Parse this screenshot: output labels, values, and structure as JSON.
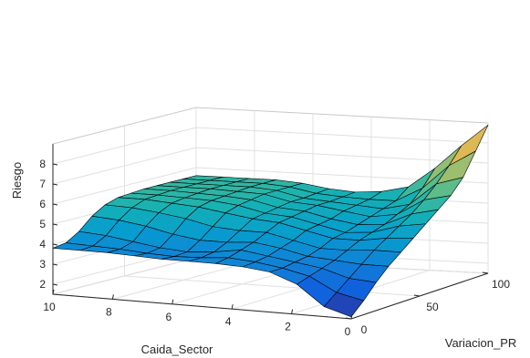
{
  "chart_data": {
    "type": "surface",
    "title": "",
    "xlabel": "Caida_Sector",
    "ylabel": "Variacion_PR",
    "zlabel": "Riesgo",
    "x_ticks": [
      "10",
      "8",
      "6",
      "4",
      "2",
      "0"
    ],
    "y_ticks": [
      "0",
      "50",
      "100"
    ],
    "z_ticks": [
      "2",
      "3",
      "4",
      "5",
      "6",
      "7",
      "8"
    ],
    "xlim": [
      0,
      10
    ],
    "ylim": [
      0,
      100
    ],
    "zlim": [
      1.5,
      9
    ],
    "grid": true,
    "colormap": "parula",
    "x_grid_values": [
      10,
      9.09,
      8.18,
      7.27,
      6.36,
      5.45,
      4.55,
      3.64,
      2.73,
      1.82,
      0.91,
      0
    ],
    "y_grid_values": [
      0,
      9.1,
      18.2,
      27.3,
      36.4,
      45.5,
      54.5,
      63.6,
      72.7,
      81.8,
      90.9,
      100
    ],
    "z_values_description": "Riesgo over grid; plateau ~3.8–5.7, min ~1.6 at Caida_Sector=0, Variacion_PR=0, max ~8.9 at Caida_Sector=0, Variacion_PR=100",
    "z_values": [
      [
        3.8,
        3.9,
        4.3,
        4.9,
        5.3,
        5.5,
        5.55,
        5.6,
        5.6,
        5.6,
        5.6,
        5.6
      ],
      [
        3.8,
        3.85,
        4.2,
        4.8,
        5.25,
        5.5,
        5.55,
        5.6,
        5.6,
        5.6,
        5.6,
        5.6
      ],
      [
        3.8,
        3.8,
        4.0,
        4.6,
        5.1,
        5.4,
        5.5,
        5.55,
        5.6,
        5.6,
        5.6,
        5.6
      ],
      [
        3.75,
        3.7,
        3.8,
        4.3,
        4.9,
        5.3,
        5.45,
        5.5,
        5.55,
        5.6,
        5.6,
        5.6
      ],
      [
        3.7,
        3.65,
        3.7,
        4.1,
        4.6,
        5.1,
        5.3,
        5.4,
        5.5,
        5.5,
        5.5,
        5.5
      ],
      [
        3.7,
        3.7,
        3.8,
        4.1,
        4.5,
        4.9,
        5.0,
        5.1,
        5.2,
        5.2,
        5.25,
        5.3
      ],
      [
        3.7,
        3.8,
        4.0,
        4.2,
        4.5,
        4.8,
        4.9,
        5.0,
        5.1,
        5.1,
        5.15,
        5.2
      ],
      [
        3.65,
        3.7,
        3.8,
        4.0,
        4.2,
        4.5,
        4.6,
        4.7,
        4.9,
        5.0,
        5.1,
        5.3
      ],
      [
        3.5,
        3.5,
        3.6,
        3.7,
        3.9,
        4.2,
        4.3,
        4.5,
        4.7,
        4.9,
        5.1,
        5.6
      ],
      [
        3.0,
        3.2,
        3.4,
        3.6,
        3.9,
        4.2,
        4.4,
        4.6,
        4.9,
        5.2,
        5.8,
        6.6
      ],
      [
        2.0,
        2.5,
        3.0,
        3.5,
        4.0,
        4.4,
        4.8,
        5.2,
        5.7,
        6.3,
        7.0,
        7.8
      ],
      [
        1.6,
        2.2,
        2.9,
        3.5,
        4.0,
        4.5,
        5.0,
        5.5,
        6.0,
        6.7,
        7.8,
        8.9
      ]
    ]
  }
}
